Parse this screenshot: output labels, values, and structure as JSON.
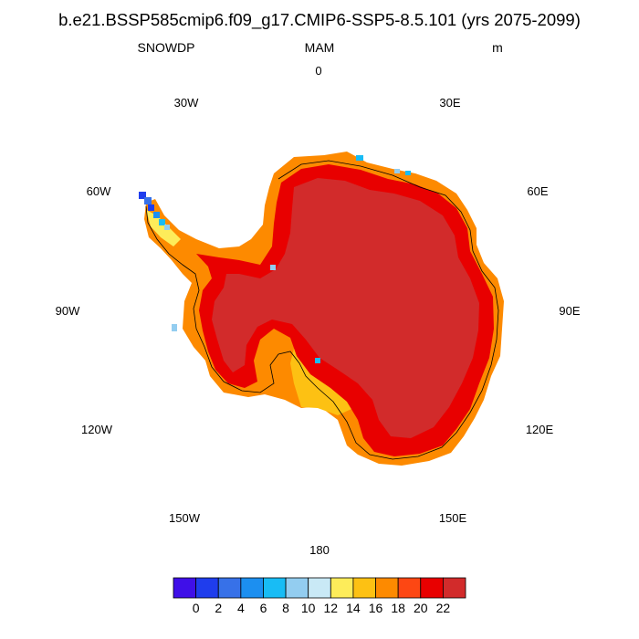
{
  "title": "b.e21.BSSP585cmip6.f09_g17.CMIP6-SSP5-8.5.101 (yrs 2075-2099)",
  "left_label": "SNOWDP",
  "center_label": "MAM",
  "right_label": "m",
  "longitude_labels": {
    "lon_0": "0",
    "lon_30e": "30E",
    "lon_60e": "60E",
    "lon_90e": "90E",
    "lon_120e": "120E",
    "lon_150e": "150E",
    "lon_180": "180",
    "lon_150w": "150W",
    "lon_120w": "120W",
    "lon_90w": "90W",
    "lon_60w": "60W",
    "lon_30w": "30W"
  },
  "colorbar": {
    "colors": [
      "#3f0fe8",
      "#1f3ded",
      "#3771e8",
      "#1c8ff0",
      "#18bcf5",
      "#93cdf0",
      "#c9e9f6",
      "#fdec5a",
      "#fdc113",
      "#fd8a00",
      "#fd4713",
      "#e80000",
      "#d22b2b"
    ],
    "tick_labels": [
      "0",
      "2",
      "4",
      "6",
      "8",
      "10",
      "12",
      "14",
      "16",
      "18",
      "20",
      "22"
    ]
  }
}
